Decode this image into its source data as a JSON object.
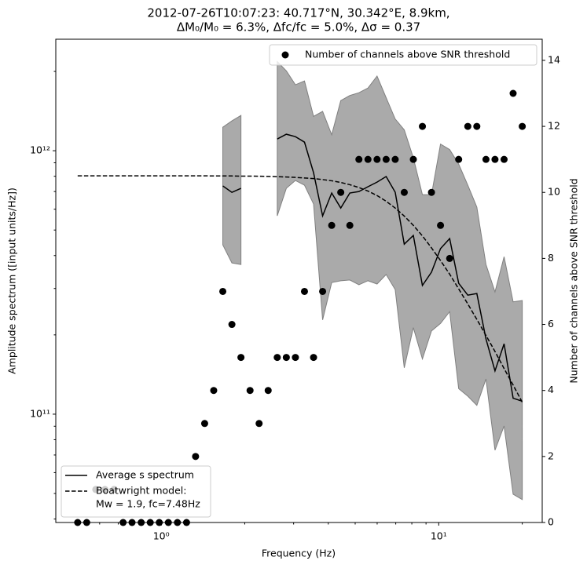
{
  "chart_data": {
    "type": "line",
    "title": "2012-07-26T10:07:23: 40.717°N, 30.342°E, 8.9km,",
    "subtitle": "ΔM₀/M₀ = 6.3%, Δfc/fc = 5.0%, Δσ = 0.37",
    "xlabel": "Frequency (Hz)",
    "ylabel": "Amplitude spectrum ([input units/Hz])",
    "y2label": "Number of channels above SNR threshold",
    "log_x": true,
    "log_y": true,
    "xlim": [
      0.417,
      23.6
    ],
    "ylim": [
      38800000000.0,
      2650000000000.0
    ],
    "y2lim": [
      0,
      14.64
    ],
    "xticks": [
      {
        "value": 1,
        "label": "10⁰"
      },
      {
        "value": 10,
        "label": "10¹"
      }
    ],
    "xminorticks": [
      0.5,
      0.6,
      0.7,
      0.8,
      0.9,
      2,
      3,
      4,
      5,
      6,
      7,
      8,
      9,
      20
    ],
    "yticks": [
      {
        "value": 100000000000.0,
        "label": "10¹¹"
      },
      {
        "value": 1000000000000.0,
        "label": "10¹²"
      }
    ],
    "yminorticks": [
      40000000000.0,
      50000000000.0,
      60000000000.0,
      70000000000.0,
      80000000000.0,
      90000000000.0,
      200000000000.0,
      300000000000.0,
      400000000000.0,
      500000000000.0,
      600000000000.0,
      700000000000.0,
      800000000000.0,
      900000000000.0,
      2000000000000.0
    ],
    "y2ticks": [
      0,
      2,
      4,
      6,
      8,
      10,
      12,
      14
    ],
    "x": [
      0.5,
      0.539,
      0.581,
      0.627,
      0.676,
      0.729,
      0.785,
      0.847,
      0.913,
      0.984,
      1.061,
      1.144,
      1.234,
      1.33,
      1.434,
      1.546,
      1.667,
      1.798,
      1.938,
      2.09,
      2.253,
      2.429,
      2.619,
      2.824,
      3.045,
      3.283,
      3.54,
      3.816,
      4.115,
      4.436,
      4.783,
      5.157,
      5.56,
      5.995,
      6.464,
      6.969,
      7.513,
      8.101,
      8.734,
      9.417,
      10.15,
      10.95,
      11.8,
      12.73,
      13.72,
      14.8,
      15.95,
      17.2,
      18.54,
      20.0
    ],
    "band": {
      "color": "#aaaaaa",
      "upper": [
        null,
        null,
        null,
        null,
        null,
        null,
        null,
        null,
        null,
        null,
        null,
        null,
        null,
        null,
        null,
        null,
        1228000000000.0,
        1298000000000.0,
        1361000000000.0,
        null,
        null,
        null,
        2180000000000.0,
        2010000000000.0,
        1780000000000.0,
        1840000000000.0,
        1350000000000.0,
        1410000000000.0,
        1150000000000.0,
        1550000000000.0,
        1620000000000.0,
        1660000000000.0,
        1730000000000.0,
        1920000000000.0,
        1590000000000.0,
        1320000000000.0,
        1200000000000.0,
        940000000000.0,
        681000000000.0,
        681000000000.0,
        1060000000000.0,
        1010000000000.0,
        890000000000.0,
        740000000000.0,
        611000000000.0,
        370000000000.0,
        291000000000.0,
        396000000000.0,
        267000000000.0,
        270000000000.0
      ],
      "lower": [
        null,
        null,
        null,
        null,
        null,
        null,
        null,
        null,
        null,
        null,
        null,
        null,
        null,
        null,
        null,
        null,
        439000000000.0,
        375000000000.0,
        370000000000.0,
        null,
        null,
        null,
        566000000000.0,
        720000000000.0,
        771000000000.0,
        740000000000.0,
        628000000000.0,
        228000000000.0,
        316000000000.0,
        321000000000.0,
        323000000000.0,
        310000000000.0,
        321000000000.0,
        312000000000.0,
        339000000000.0,
        297000000000.0,
        150000000000.0,
        213000000000.0,
        162000000000.0,
        207000000000.0,
        221000000000.0,
        245000000000.0,
        125000000000.0,
        117000000000.0,
        108000000000.0,
        136000000000.0,
        73000000000.0,
        90200000000.0,
        49700000000.0,
        47400000000.0
      ]
    },
    "series": [
      {
        "name": "Average s spectrum",
        "color": "#000000",
        "dash": "solid",
        "values": [
          null,
          null,
          null,
          null,
          null,
          null,
          null,
          null,
          null,
          null,
          null,
          null,
          null,
          null,
          null,
          null,
          735000000000.0,
          695000000000.0,
          720000000000.0,
          null,
          null,
          null,
          1108000000000.0,
          1155000000000.0,
          1131000000000.0,
          1078000000000.0,
          825000000000.0,
          566000000000.0,
          691000000000.0,
          606000000000.0,
          691000000000.0,
          700000000000.0,
          730000000000.0,
          760000000000.0,
          798000000000.0,
          696000000000.0,
          442000000000.0,
          477000000000.0,
          308000000000.0,
          346000000000.0,
          425000000000.0,
          464000000000.0,
          314000000000.0,
          283000000000.0,
          287000000000.0,
          193000000000.0,
          146000000000.0,
          185000000000.0,
          115000000000.0,
          112000000000.0
        ]
      },
      {
        "name": "Boatwright model:",
        "name_line2": "Mw = 1.9, fc=7.48Hz",
        "color": "#000000",
        "dash": "dashed",
        "values": [
          803000000000.0,
          803000000000.0,
          803000000000.0,
          803000000000.0,
          803000000000.0,
          803000000000.0,
          803000000000.0,
          803000000000.0,
          803000000000.0,
          803000000000.0,
          803000000000.0,
          803000000000.0,
          803000000000.0,
          803000000000.0,
          803000000000.0,
          802000000000.0,
          802000000000.0,
          802000000000.0,
          801000000000.0,
          801000000000.0,
          800000000000.0,
          799000000000.0,
          797000000000.0,
          795000000000.0,
          792000000000.0,
          788000000000.0,
          784000000000.0,
          777000000000.0,
          769000000000.0,
          758000000000.0,
          743000000000.0,
          725000000000.0,
          703000000000.0,
          676000000000.0,
          643000000000.0,
          606000000000.0,
          565000000000.0,
          521000000000.0,
          475000000000.0,
          428000000000.0,
          383000000000.0,
          340000000000.0,
          299000000000.0,
          262000000000.0,
          229000000000.0,
          199000000000.0,
          173000000000.0,
          149000000000.0,
          129000000000.0,
          111000000000.0
        ]
      },
      {
        "name": "Number of channels above SNR threshold",
        "type": "scatter",
        "axis": "y2",
        "color": "#000000",
        "values": [
          0,
          0,
          1,
          1,
          1,
          0,
          0,
          0,
          0,
          0,
          0,
          0,
          0,
          2,
          3,
          4,
          7,
          6,
          5,
          4,
          3,
          4,
          5,
          5,
          5,
          7,
          5,
          7,
          9,
          10,
          9,
          11,
          11,
          11,
          11,
          11,
          10,
          11,
          12,
          10,
          9,
          8,
          11,
          12,
          12,
          11,
          11,
          11,
          13,
          12
        ]
      }
    ],
    "legend": "lower left",
    "legend2": "upper right"
  }
}
